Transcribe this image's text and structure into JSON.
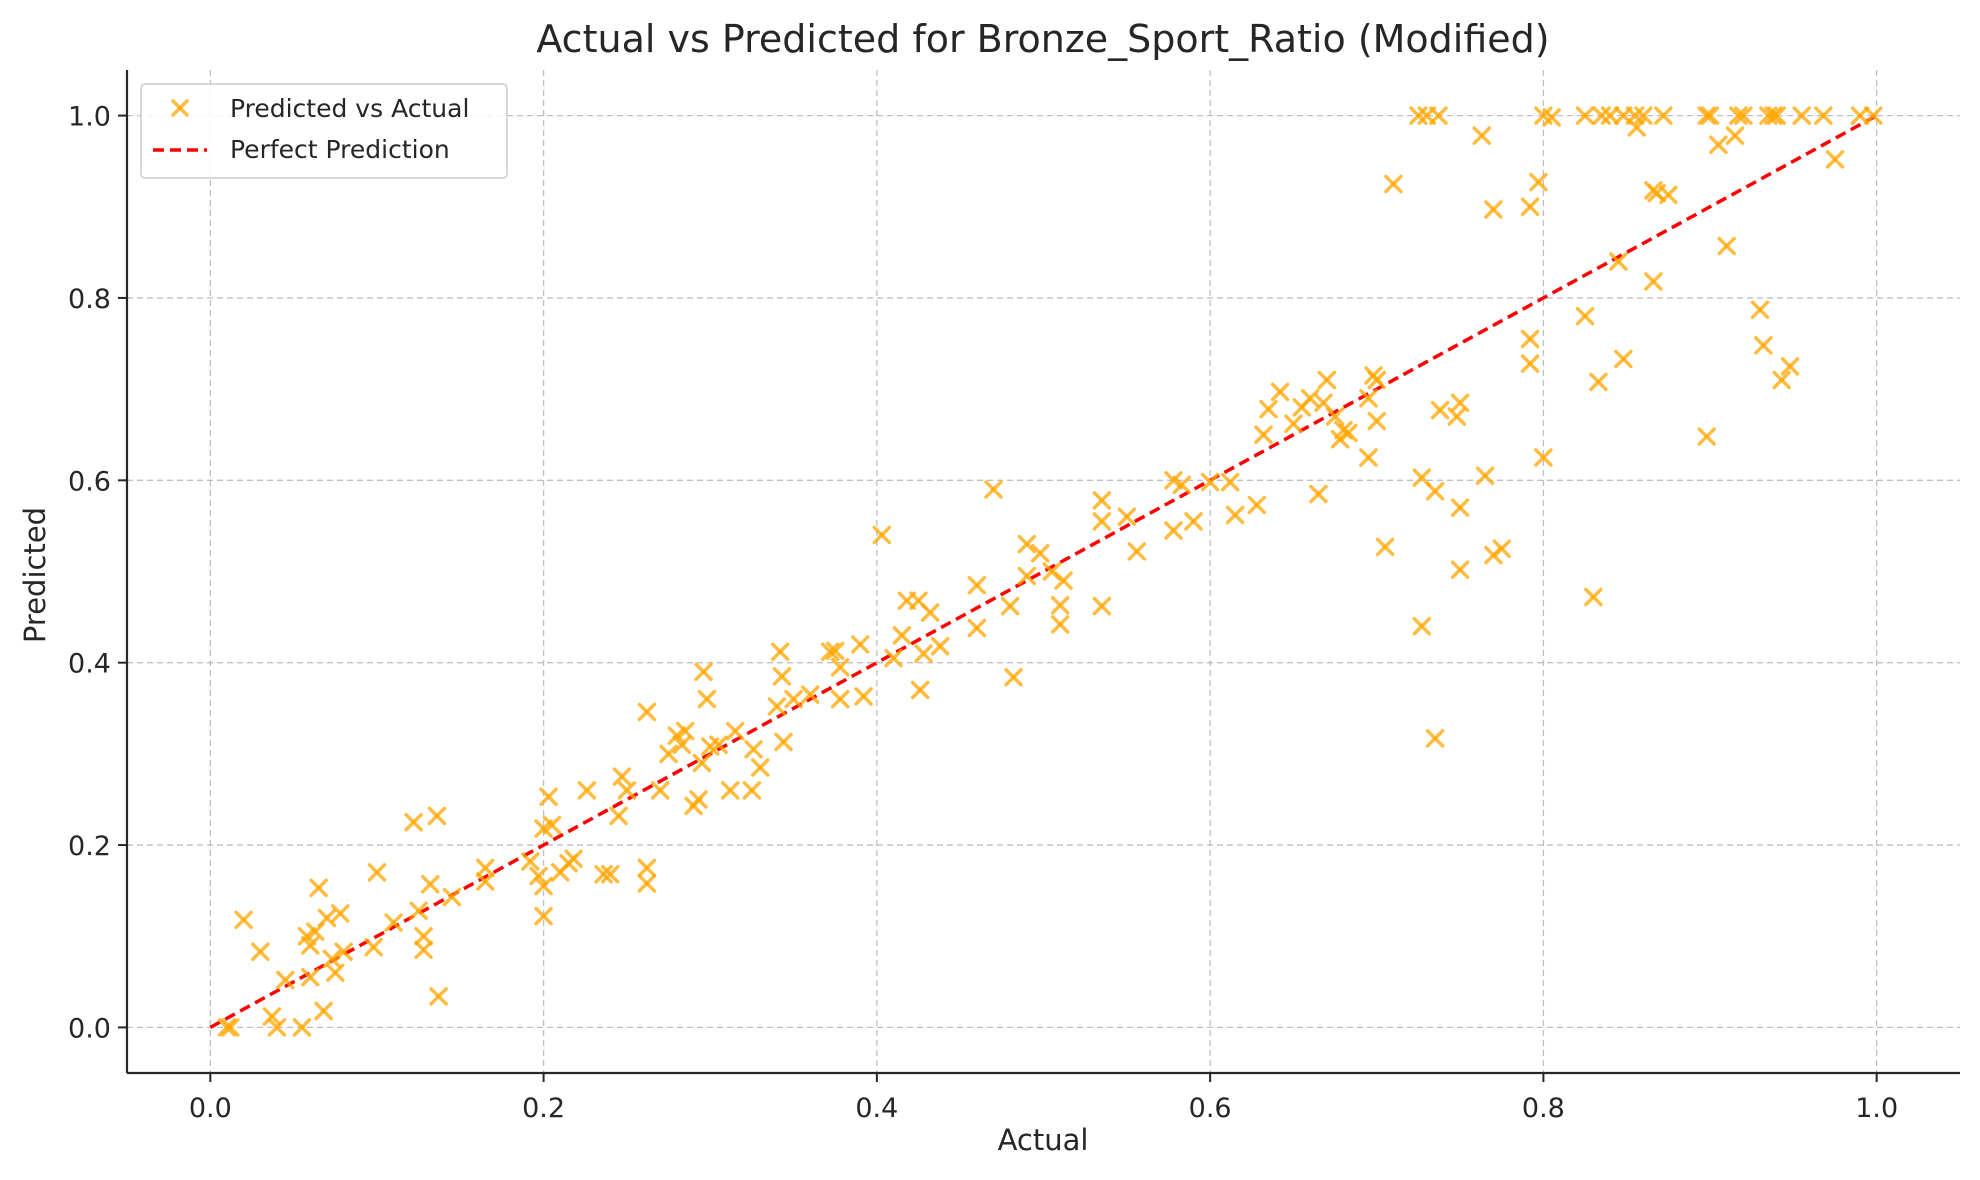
{
  "chart_data": {
    "type": "scatter",
    "title": "Actual vs Predicted for Bronze_Sport_Ratio (Modified)",
    "xlabel": "Actual",
    "ylabel": "Predicted",
    "xlim": [
      -0.05,
      1.05
    ],
    "ylim": [
      -0.05,
      1.05
    ],
    "xticks": [
      "0.0",
      "0.2",
      "0.4",
      "0.6",
      "0.8",
      "1.0"
    ],
    "yticks": [
      "0.0",
      "0.2",
      "0.4",
      "0.6",
      "0.8",
      "1.0"
    ],
    "grid": true,
    "legend_position": "top-left",
    "series": [
      {
        "name": "Predicted vs Actual",
        "marker": "x",
        "color": "#FFA500",
        "points": [
          [
            0.01,
            0.0
          ],
          [
            0.012,
            0.0
          ],
          [
            0.02,
            0.118
          ],
          [
            0.03,
            0.083
          ],
          [
            0.037,
            0.012
          ],
          [
            0.04,
            0.0
          ],
          [
            0.045,
            0.052
          ],
          [
            0.055,
            0.0
          ],
          [
            0.058,
            0.1
          ],
          [
            0.06,
            0.055
          ],
          [
            0.06,
            0.09
          ],
          [
            0.063,
            0.105
          ],
          [
            0.065,
            0.153
          ],
          [
            0.068,
            0.018
          ],
          [
            0.07,
            0.12
          ],
          [
            0.073,
            0.075
          ],
          [
            0.075,
            0.06
          ],
          [
            0.078,
            0.125
          ],
          [
            0.08,
            0.083
          ],
          [
            0.098,
            0.088
          ],
          [
            0.1,
            0.17
          ],
          [
            0.11,
            0.115
          ],
          [
            0.122,
            0.225
          ],
          [
            0.125,
            0.128
          ],
          [
            0.128,
            0.085
          ],
          [
            0.128,
            0.1
          ],
          [
            0.132,
            0.157
          ],
          [
            0.136,
            0.232
          ],
          [
            0.137,
            0.034
          ],
          [
            0.145,
            0.143
          ],
          [
            0.165,
            0.175
          ],
          [
            0.165,
            0.16
          ],
          [
            0.192,
            0.182
          ],
          [
            0.197,
            0.166
          ],
          [
            0.2,
            0.155
          ],
          [
            0.2,
            0.122
          ],
          [
            0.2,
            0.218
          ],
          [
            0.203,
            0.253
          ],
          [
            0.205,
            0.222
          ],
          [
            0.21,
            0.17
          ],
          [
            0.215,
            0.18
          ],
          [
            0.218,
            0.185
          ],
          [
            0.226,
            0.26
          ],
          [
            0.236,
            0.168
          ],
          [
            0.24,
            0.168
          ],
          [
            0.245,
            0.232
          ],
          [
            0.247,
            0.275
          ],
          [
            0.25,
            0.26
          ],
          [
            0.262,
            0.175
          ],
          [
            0.262,
            0.158
          ],
          [
            0.262,
            0.346
          ],
          [
            0.27,
            0.26
          ],
          [
            0.275,
            0.3
          ],
          [
            0.28,
            0.32
          ],
          [
            0.283,
            0.31
          ],
          [
            0.285,
            0.325
          ],
          [
            0.29,
            0.243
          ],
          [
            0.293,
            0.25
          ],
          [
            0.295,
            0.29
          ],
          [
            0.296,
            0.39
          ],
          [
            0.298,
            0.36
          ],
          [
            0.3,
            0.308
          ],
          [
            0.305,
            0.31
          ],
          [
            0.312,
            0.26
          ],
          [
            0.315,
            0.325
          ],
          [
            0.325,
            0.26
          ],
          [
            0.326,
            0.305
          ],
          [
            0.33,
            0.285
          ],
          [
            0.34,
            0.352
          ],
          [
            0.342,
            0.412
          ],
          [
            0.343,
            0.385
          ],
          [
            0.344,
            0.313
          ],
          [
            0.35,
            0.36
          ],
          [
            0.36,
            0.365
          ],
          [
            0.372,
            0.412
          ],
          [
            0.375,
            0.413
          ],
          [
            0.378,
            0.36
          ],
          [
            0.378,
            0.395
          ],
          [
            0.39,
            0.42
          ],
          [
            0.392,
            0.363
          ],
          [
            0.403,
            0.54
          ],
          [
            0.41,
            0.405
          ],
          [
            0.415,
            0.43
          ],
          [
            0.418,
            0.468
          ],
          [
            0.425,
            0.468
          ],
          [
            0.426,
            0.37
          ],
          [
            0.428,
            0.41
          ],
          [
            0.432,
            0.455
          ],
          [
            0.438,
            0.418
          ],
          [
            0.46,
            0.485
          ],
          [
            0.46,
            0.438
          ],
          [
            0.47,
            0.59
          ],
          [
            0.48,
            0.462
          ],
          [
            0.482,
            0.384
          ],
          [
            0.49,
            0.53
          ],
          [
            0.49,
            0.495
          ],
          [
            0.498,
            0.52
          ],
          [
            0.505,
            0.5
          ],
          [
            0.51,
            0.463
          ],
          [
            0.51,
            0.442
          ],
          [
            0.512,
            0.49
          ],
          [
            0.535,
            0.578
          ],
          [
            0.535,
            0.555
          ],
          [
            0.535,
            0.462
          ],
          [
            0.55,
            0.56
          ],
          [
            0.556,
            0.522
          ],
          [
            0.578,
            0.6
          ],
          [
            0.578,
            0.545
          ],
          [
            0.583,
            0.595
          ],
          [
            0.59,
            0.555
          ],
          [
            0.6,
            0.598
          ],
          [
            0.612,
            0.598
          ],
          [
            0.615,
            0.562
          ],
          [
            0.628,
            0.573
          ],
          [
            0.632,
            0.65
          ],
          [
            0.635,
            0.678
          ],
          [
            0.642,
            0.697
          ],
          [
            0.65,
            0.662
          ],
          [
            0.655,
            0.68
          ],
          [
            0.66,
            0.69
          ],
          [
            0.665,
            0.585
          ],
          [
            0.668,
            0.685
          ],
          [
            0.67,
            0.71
          ],
          [
            0.675,
            0.67
          ],
          [
            0.678,
            0.645
          ],
          [
            0.68,
            0.655
          ],
          [
            0.683,
            0.652
          ],
          [
            0.695,
            0.625
          ],
          [
            0.695,
            0.69
          ],
          [
            0.698,
            0.715
          ],
          [
            0.7,
            0.71
          ],
          [
            0.7,
            0.665
          ],
          [
            0.705,
            0.527
          ],
          [
            0.71,
            0.925
          ],
          [
            0.725,
            1.0
          ],
          [
            0.727,
            0.603
          ],
          [
            0.727,
            0.44
          ],
          [
            0.73,
            1.0
          ],
          [
            0.735,
            0.317
          ],
          [
            0.735,
            0.588
          ],
          [
            0.737,
            1.0
          ],
          [
            0.738,
            0.677
          ],
          [
            0.748,
            0.67
          ],
          [
            0.75,
            0.685
          ],
          [
            0.75,
            0.502
          ],
          [
            0.75,
            0.57
          ],
          [
            0.763,
            0.978
          ],
          [
            0.765,
            0.605
          ],
          [
            0.77,
            0.897
          ],
          [
            0.77,
            0.518
          ],
          [
            0.775,
            0.525
          ],
          [
            0.792,
            0.9
          ],
          [
            0.792,
            0.755
          ],
          [
            0.792,
            0.728
          ],
          [
            0.797,
            0.927
          ],
          [
            0.8,
            0.625
          ],
          [
            0.8,
            1.0
          ],
          [
            0.805,
            0.998
          ],
          [
            0.825,
            1.0
          ],
          [
            0.825,
            0.78
          ],
          [
            0.83,
            0.472
          ],
          [
            0.833,
            0.708
          ],
          [
            0.835,
            1.0
          ],
          [
            0.84,
            1.0
          ],
          [
            0.845,
            0.84
          ],
          [
            0.848,
            0.733
          ],
          [
            0.848,
            1.0
          ],
          [
            0.855,
            1.0
          ],
          [
            0.856,
            0.987
          ],
          [
            0.86,
            1.0
          ],
          [
            0.866,
            0.818
          ],
          [
            0.866,
            0.918
          ],
          [
            0.868,
            0.915
          ],
          [
            0.872,
            1.0
          ],
          [
            0.875,
            0.913
          ],
          [
            0.898,
            1.0
          ],
          [
            0.898,
            0.648
          ],
          [
            0.9,
            1.0
          ],
          [
            0.905,
            0.968
          ],
          [
            0.91,
            0.857
          ],
          [
            0.915,
            0.978
          ],
          [
            0.917,
            1.0
          ],
          [
            0.92,
            1.0
          ],
          [
            0.93,
            0.787
          ],
          [
            0.932,
            0.748
          ],
          [
            0.935,
            1.0
          ],
          [
            0.938,
            1.0
          ],
          [
            0.94,
            1.0
          ],
          [
            0.943,
            0.71
          ],
          [
            0.948,
            0.725
          ],
          [
            0.955,
            1.0
          ],
          [
            0.968,
            1.0
          ],
          [
            0.975,
            0.952
          ],
          [
            0.99,
            1.0
          ],
          [
            0.998,
            1.0
          ]
        ]
      },
      {
        "name": "Perfect Prediction",
        "type": "line",
        "style": "dashed",
        "color": "#FF0000",
        "x": [
          0.0,
          1.0
        ],
        "y": [
          0.0,
          1.0
        ]
      }
    ]
  }
}
